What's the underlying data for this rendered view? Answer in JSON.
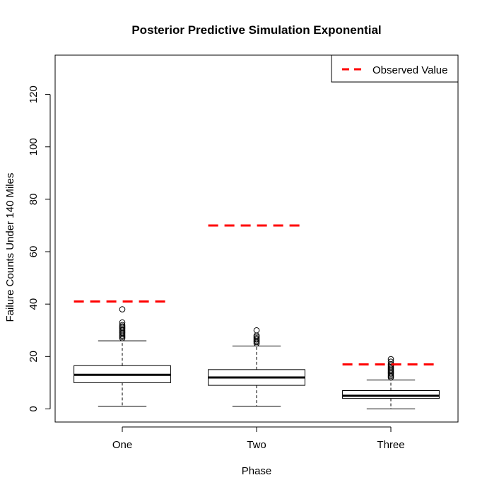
{
  "chart_data": {
    "type": "boxplot",
    "title": "Posterior Predictive Simulation Exponential",
    "xlabel": "Phase",
    "ylabel": "Failure Counts Under 140 Miles",
    "ylim": [
      -5,
      135
    ],
    "yticks": [
      0,
      20,
      40,
      60,
      80,
      100,
      120
    ],
    "categories": [
      "One",
      "Two",
      "Three"
    ],
    "boxes": [
      {
        "category": "One",
        "min": 1,
        "q1": 10,
        "median": 13,
        "q3": 16.5,
        "max": 26,
        "outliers": [
          27,
          27.5,
          28,
          28.5,
          29,
          29.5,
          30,
          30.5,
          31,
          31.5,
          32,
          33,
          38
        ]
      },
      {
        "category": "Two",
        "min": 1,
        "q1": 9,
        "median": 12,
        "q3": 15,
        "max": 24,
        "outliers": [
          25,
          25.5,
          26,
          26.5,
          27,
          27.5,
          28,
          30
        ]
      },
      {
        "category": "Three",
        "min": 0,
        "q1": 4,
        "median": 5,
        "q3": 7,
        "max": 11,
        "outliers": [
          12,
          12.5,
          13,
          13.5,
          14,
          14.5,
          15,
          15.5,
          16,
          16.5,
          17,
          18,
          19
        ]
      }
    ],
    "observed": {
      "name": "Observed Value",
      "color": "#ff0000",
      "values": [
        41,
        70,
        17
      ]
    },
    "legend_position": "top-right",
    "grid": false
  }
}
